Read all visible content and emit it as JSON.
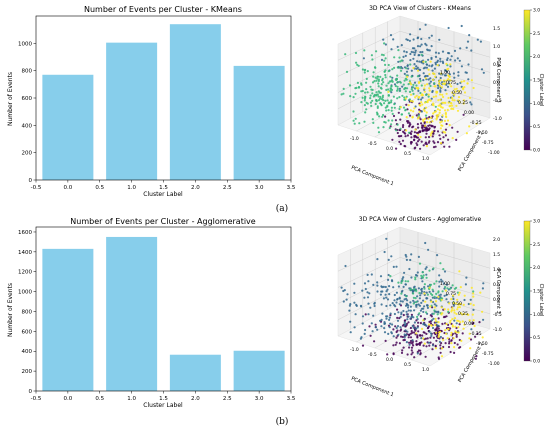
{
  "chart_data": [
    {
      "type": "bar",
      "title": "Number of Events per Cluster - KMeans",
      "xlabel": "Cluster Label",
      "ylabel": "Number of Events",
      "categories": [
        0,
        1,
        2,
        3
      ],
      "values": [
        770,
        1005,
        1140,
        835
      ],
      "xlim": [
        -0.5,
        3.5
      ],
      "ylim": [
        0,
        1200
      ],
      "xticks": [
        "-0.5",
        "0.0",
        "0.5",
        "1.0",
        "1.5",
        "2.0",
        "2.5",
        "3.0",
        "3.5"
      ],
      "yticks": [
        "0",
        "200",
        "400",
        "600",
        "800",
        "1000"
      ],
      "bar_color": "#87ceeb"
    },
    {
      "type": "scatter",
      "title": "3D PCA View of Clusters - KMeans",
      "xlabel": "PCA Component 1",
      "ylabel": "PCA Component 2",
      "zlabel": "PCA Component 3",
      "colorbar_label": "Cluster Label",
      "colorbar_ticks": [
        "0.0",
        "0.5",
        "1.0",
        "1.5",
        "2.0",
        "2.5",
        "3.0"
      ],
      "x_ticks": [
        "-1.0",
        "-0.5",
        "0.0",
        "0.5",
        "1.0"
      ],
      "y_ticks": [
        "-1.00",
        "-0.75",
        "-0.50",
        "-0.25",
        "0.00",
        "0.25",
        "0.50",
        "0.75",
        "1.00"
      ],
      "z_ticks": [
        "-1.0",
        "-0.5",
        "0.0",
        "0.5",
        "1.0",
        "1.5"
      ],
      "colormap": "viridis"
    },
    {
      "type": "bar",
      "title": "Number of Events per Cluster - Agglomerative",
      "xlabel": "Cluster Label",
      "ylabel": "Number of Events",
      "categories": [
        0,
        1,
        2,
        3
      ],
      "values": [
        1430,
        1550,
        365,
        405
      ],
      "xlim": [
        -0.5,
        3.5
      ],
      "ylim": [
        0,
        1650
      ],
      "xticks": [
        "-0.5",
        "0.0",
        "0.5",
        "1.0",
        "1.5",
        "2.0",
        "2.5",
        "3.0",
        "3.5"
      ],
      "yticks": [
        "0",
        "200",
        "400",
        "600",
        "800",
        "1000",
        "1200",
        "1400",
        "1600"
      ],
      "bar_color": "#87ceeb"
    },
    {
      "type": "scatter",
      "title": "3D PCA View of Clusters - Agglomerative",
      "xlabel": "PCA Component 1",
      "ylabel": "PCA Component 2",
      "zlabel": "PCA Component 3",
      "colorbar_label": "Cluster Label",
      "colorbar_ticks": [
        "0.0",
        "0.5",
        "1.0",
        "1.5",
        "2.0",
        "2.5",
        "3.0"
      ],
      "x_ticks": [
        "-1.0",
        "-0.5",
        "0.0",
        "0.5",
        "1.0"
      ],
      "y_ticks": [
        "-1.00",
        "-0.75",
        "-0.50",
        "-0.25",
        "0.00",
        "0.25",
        "0.50",
        "0.75",
        "1.00"
      ],
      "z_ticks": [
        "-1.0",
        "-0.5",
        "0.0",
        "0.5",
        "1.0",
        "1.5",
        "2.0"
      ],
      "colormap": "viridis"
    }
  ],
  "captions": [
    "(a)",
    "(b)"
  ],
  "cluster_colors": [
    "#440154",
    "#31688e",
    "#35b779",
    "#fde725"
  ]
}
